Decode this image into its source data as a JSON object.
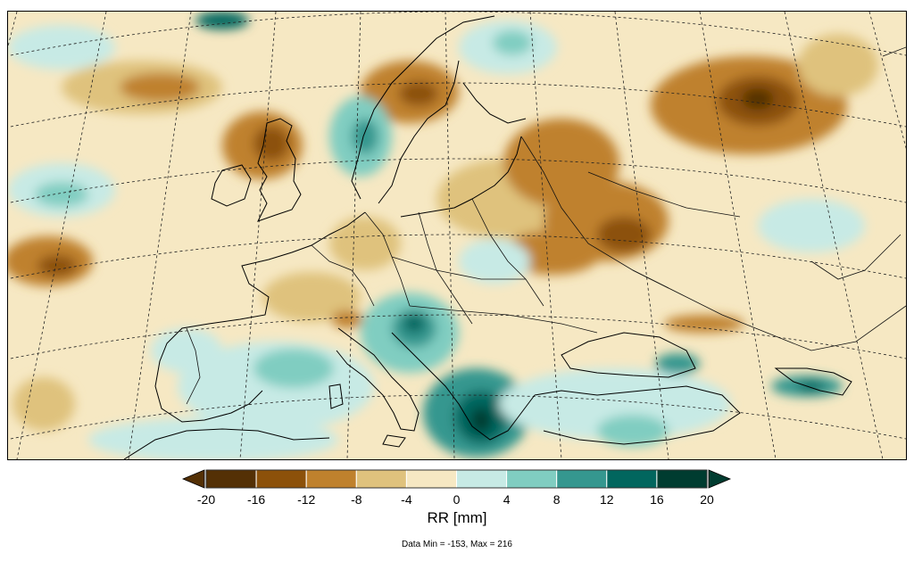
{
  "legend": {
    "title": "RR [mm]",
    "ticks": [
      "-20",
      "-16",
      "-12",
      "-8",
      "-4",
      "0",
      "4",
      "8",
      "12",
      "16",
      "20"
    ],
    "colors": [
      "#543005",
      "#8c510a",
      "#bf812d",
      "#dfc27d",
      "#f6e8c3",
      "#c7eae5",
      "#80cdc1",
      "#35978f",
      "#01665e",
      "#003c30"
    ],
    "under_color": "#543005",
    "over_color": "#003c30"
  },
  "stats": {
    "text": "Data Min = -153, Max = 216"
  },
  "map": {
    "type": "precipitation anomaly map",
    "region": "Europe"
  }
}
